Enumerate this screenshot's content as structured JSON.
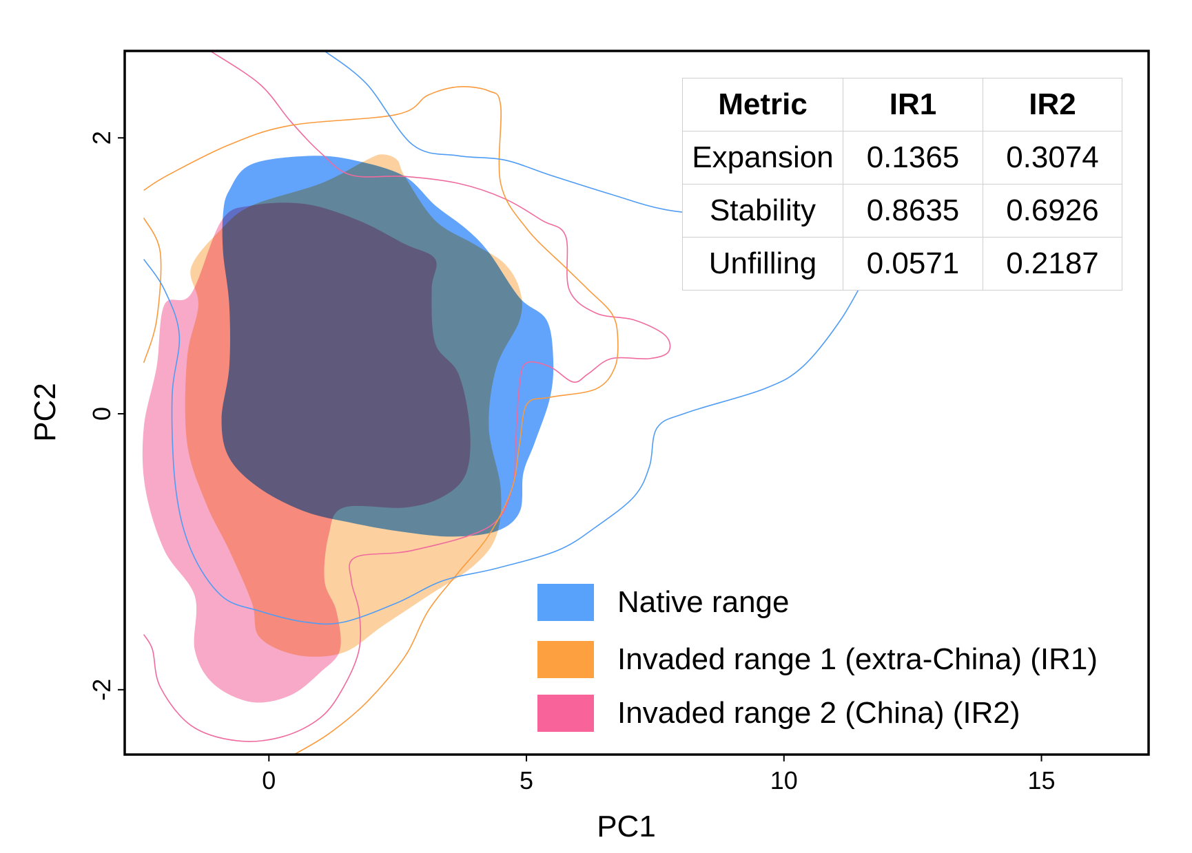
{
  "chart_data": {
    "type": "area",
    "xlabel": "PC1",
    "ylabel": "PC2",
    "xlim": [
      -2.8,
      17.08
    ],
    "ylim": [
      -2.47,
      2.63
    ],
    "xticks": [
      0,
      5,
      10,
      15
    ],
    "yticks": [
      -2,
      0,
      2
    ],
    "grid": false,
    "legend_placement": "bottom-right",
    "series": [
      {
        "name": "Invaded range 2 (China) (IR2)",
        "color": "#f8a9c8",
        "line_color": "#f06a9e",
        "filled": [
          [
            -2.03,
            0.79
          ],
          [
            -1.51,
            0.87
          ],
          [
            -0.92,
            1.4
          ],
          [
            -0.33,
            1.51
          ],
          [
            0.71,
            1.52
          ],
          [
            1.75,
            1.4
          ],
          [
            2.64,
            1.23
          ],
          [
            3.23,
            1.12
          ],
          [
            3.16,
            0.9
          ],
          [
            3.23,
            0.51
          ],
          [
            3.68,
            0.29
          ],
          [
            3.9,
            -0.1
          ],
          [
            3.83,
            -0.43
          ],
          [
            3.38,
            -0.6
          ],
          [
            2.64,
            -0.68
          ],
          [
            1.45,
            -0.68
          ],
          [
            1.16,
            -0.88
          ],
          [
            1.08,
            -1.21
          ],
          [
            1.31,
            -1.43
          ],
          [
            1.38,
            -1.71
          ],
          [
            1.01,
            -1.87
          ],
          [
            0.42,
            -2.04
          ],
          [
            -0.33,
            -2.09
          ],
          [
            -1.07,
            -1.96
          ],
          [
            -1.44,
            -1.71
          ],
          [
            -1.44,
            -1.32
          ],
          [
            -2.03,
            -0.99
          ],
          [
            -2.4,
            -0.54
          ],
          [
            -2.43,
            -0.1
          ],
          [
            -2.18,
            0.34
          ]
        ],
        "contour": [
          [
            [
              -1.14,
              2.63
            ],
            [
              -0.18,
              2.39
            ],
            [
              0.42,
              2.12
            ],
            [
              1.01,
              1.89
            ],
            [
              1.6,
              1.73
            ],
            [
              2.64,
              1.72
            ],
            [
              3.68,
              1.67
            ],
            [
              4.57,
              1.56
            ],
            [
              5.31,
              1.4
            ],
            [
              5.76,
              1.29
            ],
            [
              5.83,
              0.9
            ],
            [
              6.35,
              0.73
            ],
            [
              7.09,
              0.68
            ],
            [
              7.69,
              0.57
            ],
            [
              7.76,
              0.45
            ],
            [
              7.39,
              0.4
            ],
            [
              6.65,
              0.4
            ],
            [
              6.2,
              0.29
            ],
            [
              5.91,
              0.23
            ],
            [
              5.46,
              0.34
            ],
            [
              5.01,
              0.37
            ],
            [
              4.87,
              0.23
            ],
            [
              4.79,
              -0.21
            ],
            [
              4.72,
              -0.54
            ],
            [
              4.27,
              -0.82
            ],
            [
              2.79,
              -0.99
            ],
            [
              1.68,
              -1.04
            ],
            [
              1.6,
              -1.21
            ],
            [
              1.75,
              -1.43
            ],
            [
              1.75,
              -1.71
            ],
            [
              1.45,
              -1.98
            ],
            [
              1.01,
              -2.2
            ],
            [
              0.27,
              -2.34
            ],
            [
              -0.62,
              -2.37
            ],
            [
              -1.51,
              -2.26
            ],
            [
              -2.11,
              -1.98
            ],
            [
              -2.26,
              -1.71
            ],
            [
              -2.43,
              -1.6
            ]
          ]
        ]
      },
      {
        "name": "Invaded range 1 (extra-China) (IR1)",
        "color": "#fdd19f",
        "line_color": "#fb9a3c",
        "filled": [
          [
            -1.51,
            1.06
          ],
          [
            -0.92,
            1.34
          ],
          [
            -0.33,
            1.51
          ],
          [
            1.01,
            1.67
          ],
          [
            1.9,
            1.84
          ],
          [
            2.2,
            1.88
          ],
          [
            2.49,
            1.84
          ],
          [
            2.64,
            1.72
          ],
          [
            3.23,
            1.4
          ],
          [
            3.98,
            1.23
          ],
          [
            4.57,
            1.09
          ],
          [
            4.87,
            0.9
          ],
          [
            4.87,
            0.68
          ],
          [
            4.42,
            0.34
          ],
          [
            4.27,
            -0.1
          ],
          [
            4.5,
            -0.54
          ],
          [
            4.42,
            -0.88
          ],
          [
            3.98,
            -1.1
          ],
          [
            3.09,
            -1.32
          ],
          [
            2.2,
            -1.54
          ],
          [
            1.45,
            -1.73
          ],
          [
            0.56,
            -1.75
          ],
          [
            -0.18,
            -1.62
          ],
          [
            -0.33,
            -1.37
          ],
          [
            -0.77,
            -0.99
          ],
          [
            -1.22,
            -0.65
          ],
          [
            -1.59,
            -0.21
          ],
          [
            -1.59,
            0.4
          ],
          [
            -1.37,
            0.79
          ]
        ],
        "contour": [
          [
            [
              -2.43,
              1.62
            ],
            [
              -1.96,
              1.73
            ],
            [
              -0.77,
              1.95
            ],
            [
              0.42,
              2.09
            ],
            [
              2.49,
              2.17
            ],
            [
              3.09,
              2.31
            ],
            [
              3.68,
              2.37
            ],
            [
              4.27,
              2.34
            ],
            [
              4.5,
              2.23
            ],
            [
              4.5,
              1.67
            ],
            [
              5.01,
              1.34
            ],
            [
              5.76,
              1.06
            ],
            [
              6.2,
              0.9
            ],
            [
              6.65,
              0.73
            ],
            [
              6.77,
              0.57
            ],
            [
              6.72,
              0.34
            ],
            [
              6.35,
              0.18
            ],
            [
              5.46,
              0.12
            ],
            [
              5.01,
              0.07
            ],
            [
              4.87,
              -0.21
            ],
            [
              4.72,
              -0.54
            ],
            [
              4.27,
              -0.88
            ],
            [
              3.68,
              -1.15
            ],
            [
              3.09,
              -1.43
            ],
            [
              2.64,
              -1.76
            ],
            [
              1.9,
              -2.09
            ],
            [
              1.16,
              -2.32
            ],
            [
              0.49,
              -2.47
            ]
          ],
          [
            [
              -2.43,
              1.42
            ],
            [
              -2.11,
              1.17
            ],
            [
              -2.18,
              0.68
            ],
            [
              -2.43,
              0.37
            ]
          ]
        ]
      },
      {
        "name": "Native range",
        "color": "#62a4fb",
        "line_color": "#4f9cf5",
        "filled": [
          [
            -0.77,
            1.62
          ],
          [
            -0.33,
            1.81
          ],
          [
            0.86,
            1.87
          ],
          [
            1.75,
            1.83
          ],
          [
            2.64,
            1.72
          ],
          [
            3.23,
            1.51
          ],
          [
            3.83,
            1.34
          ],
          [
            4.27,
            1.17
          ],
          [
            4.87,
            0.84
          ],
          [
            5.39,
            0.68
          ],
          [
            5.52,
            0.4
          ],
          [
            5.46,
            0.12
          ],
          [
            5.16,
            -0.21
          ],
          [
            4.94,
            -0.43
          ],
          [
            4.87,
            -0.71
          ],
          [
            4.42,
            -0.85
          ],
          [
            3.53,
            -0.89
          ],
          [
            2.49,
            -0.85
          ],
          [
            1.6,
            -0.79
          ],
          [
            0.71,
            -0.71
          ],
          [
            -0.18,
            -0.54
          ],
          [
            -0.77,
            -0.32
          ],
          [
            -0.92,
            -0.04
          ],
          [
            -0.77,
            0.34
          ],
          [
            -0.77,
            0.79
          ],
          [
            -0.89,
            1.17
          ],
          [
            -0.89,
            1.45
          ]
        ],
        "contour": [
          [
            [
              1.08,
              2.63
            ],
            [
              1.9,
              2.39
            ],
            [
              2.79,
              1.95
            ],
            [
              3.68,
              1.87
            ],
            [
              4.57,
              1.84
            ],
            [
              5.46,
              1.73
            ],
            [
              6.65,
              1.59
            ],
            [
              7.69,
              1.48
            ],
            [
              9.02,
              1.42
            ],
            [
              10.06,
              1.34
            ],
            [
              10.95,
              1.17
            ],
            [
              11.84,
              1.37
            ],
            [
              12.14,
              1.29
            ],
            [
              11.69,
              1.06
            ],
            [
              11.1,
              0.68
            ],
            [
              10.36,
              0.34
            ],
            [
              9.61,
              0.18
            ],
            [
              8.13,
              0.01
            ],
            [
              7.54,
              -0.1
            ],
            [
              7.39,
              -0.38
            ],
            [
              7.09,
              -0.6
            ],
            [
              6.35,
              -0.82
            ],
            [
              5.61,
              -0.99
            ],
            [
              4.42,
              -1.12
            ],
            [
              3.38,
              -1.21
            ],
            [
              2.49,
              -1.37
            ],
            [
              1.45,
              -1.51
            ],
            [
              0.71,
              -1.51
            ],
            [
              -0.18,
              -1.43
            ],
            [
              -0.92,
              -1.32
            ],
            [
              -1.51,
              -0.99
            ],
            [
              -1.81,
              -0.54
            ],
            [
              -1.88,
              0.12
            ],
            [
              -1.74,
              0.57
            ],
            [
              -2.03,
              0.9
            ],
            [
              -2.43,
              1.12
            ]
          ]
        ]
      }
    ],
    "legend": [
      {
        "label": "Native range",
        "color": "#58a2fc"
      },
      {
        "label": "Invaded range 1 (extra-China) (IR1)",
        "color": "#fda040"
      },
      {
        "label": "Invaded range 2 (China) (IR2)",
        "color": "#f8649a"
      }
    ],
    "table": {
      "headers": [
        "Metric",
        "IR1",
        "IR2"
      ],
      "rows": [
        [
          "Expansion",
          "0.1365",
          "0.3074"
        ],
        [
          "Stability",
          "0.8635",
          "0.6926"
        ],
        [
          "Unfilling",
          "0.0571",
          "0.2187"
        ]
      ]
    }
  }
}
